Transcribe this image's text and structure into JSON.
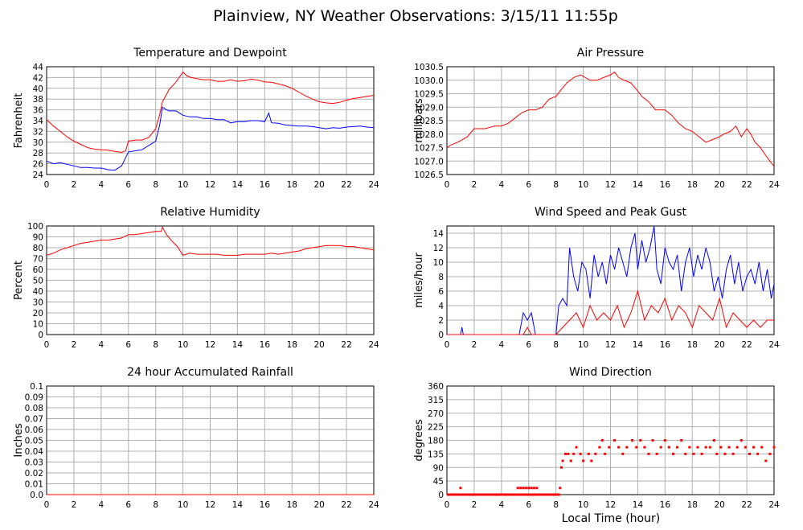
{
  "page": {
    "title": "Plainview, NY Weather Observations: 3/15/11 11:55p",
    "x_axis_label": "Local Time (hour)"
  },
  "colors": {
    "primary": "#ff0000",
    "secondary": "#0000ff",
    "grid": "#b0b0b0",
    "frame": "#000000"
  },
  "chart_data": [
    {
      "id": "temperature",
      "type": "line",
      "title": "Temperature and Dewpoint",
      "ylabel": "Fahrenheit",
      "xlim": [
        0,
        24
      ],
      "ylim": [
        24,
        44
      ],
      "xticks": [
        0,
        2,
        4,
        6,
        8,
        10,
        12,
        14,
        16,
        18,
        20,
        22,
        24
      ],
      "yticks": [
        24,
        26,
        28,
        30,
        32,
        34,
        36,
        38,
        40,
        42,
        44
      ],
      "grid": true,
      "series": [
        {
          "color": "#ff0000",
          "x": [
            0,
            0.5,
            1,
            1.5,
            2,
            2.5,
            3,
            3.5,
            4,
            4.5,
            5,
            5.5,
            5.8,
            6,
            6.5,
            7,
            7.5,
            8,
            8.3,
            8.5,
            9,
            9.5,
            10,
            10.3,
            10.6,
            11,
            11.5,
            12,
            12.5,
            13,
            13.5,
            14,
            14.5,
            15,
            15.5,
            16,
            16.5,
            17,
            17.5,
            18,
            18.5,
            19,
            19.5,
            20,
            20.5,
            21,
            21.5,
            22,
            22.5,
            23,
            23.5,
            24
          ],
          "y": [
            34.2,
            33,
            32,
            31,
            30.2,
            29.6,
            29,
            28.7,
            28.6,
            28.5,
            28.3,
            28.1,
            28.4,
            30.2,
            30.4,
            30.4,
            30.9,
            32.5,
            35.2,
            37.5,
            39.8,
            41.2,
            43,
            42.3,
            42,
            41.8,
            41.6,
            41.6,
            41.3,
            41.3,
            41.6,
            41.3,
            41.4,
            41.7,
            41.5,
            41.2,
            41.1,
            40.8,
            40.5,
            40,
            39.3,
            38.6,
            38,
            37.5,
            37.3,
            37.2,
            37.4,
            37.8,
            38.1,
            38.3,
            38.5,
            38.7
          ]
        },
        {
          "color": "#0000ff",
          "x": [
            0,
            0.5,
            1,
            1.5,
            2,
            2.5,
            3,
            3.5,
            4,
            4.5,
            5,
            5.5,
            6,
            6.5,
            7,
            7.5,
            8,
            8.3,
            8.5,
            8.8,
            9,
            9.5,
            10,
            10.5,
            11,
            11.5,
            12,
            12.5,
            13,
            13.5,
            14,
            14.5,
            15,
            15.5,
            16,
            16.3,
            16.5,
            17,
            17.5,
            18,
            18.5,
            19,
            19.5,
            20,
            20.5,
            21,
            21.5,
            22,
            22.5,
            23,
            23.5,
            24
          ],
          "y": [
            26.5,
            26,
            26.2,
            25.9,
            25.6,
            25.3,
            25.3,
            25.2,
            25.2,
            24.9,
            24.8,
            25.6,
            28.2,
            28.4,
            28.6,
            29.4,
            30.2,
            33.3,
            36.5,
            36,
            35.8,
            35.8,
            35,
            34.7,
            34.7,
            34.4,
            34.4,
            34.2,
            34.2,
            33.6,
            33.8,
            33.8,
            34,
            34,
            33.8,
            35.4,
            33.6,
            33.5,
            33.2,
            33.1,
            33,
            33,
            32.9,
            32.7,
            32.5,
            32.7,
            32.6,
            32.8,
            32.9,
            33,
            32.8,
            32.7
          ]
        }
      ]
    },
    {
      "id": "pressure",
      "type": "line",
      "title": "Air Pressure",
      "ylabel": "millibars",
      "xlim": [
        0,
        24
      ],
      "ylim": [
        1026.5,
        1030.5
      ],
      "xticks": [
        0,
        2,
        4,
        6,
        8,
        10,
        12,
        14,
        16,
        18,
        20,
        22,
        24
      ],
      "yticks": [
        1026.5,
        1027.0,
        1027.5,
        1028.0,
        1028.5,
        1029.0,
        1029.5,
        1030.0,
        1030.5
      ],
      "ytick_decimals": 1,
      "grid": true,
      "series": [
        {
          "color": "#ff0000",
          "x": [
            0,
            0.3,
            0.8,
            1.5,
            2,
            2.8,
            3.5,
            4,
            4.5,
            5,
            5.5,
            6,
            6.5,
            7,
            7.5,
            8,
            8.3,
            8.8,
            9.3,
            9.8,
            10.5,
            11,
            11.5,
            12,
            12.3,
            12.6,
            13,
            13.5,
            14,
            14.3,
            14.8,
            15.3,
            16,
            16.5,
            17,
            17.5,
            18,
            18.5,
            19,
            19.5,
            20,
            20.3,
            20.8,
            21.2,
            21.6,
            22,
            22.3,
            22.6,
            23,
            23.4,
            23.7,
            24
          ],
          "y": [
            1027.5,
            1027.6,
            1027.7,
            1027.9,
            1028.2,
            1028.2,
            1028.3,
            1028.3,
            1028.4,
            1028.6,
            1028.8,
            1028.9,
            1028.9,
            1029.0,
            1029.3,
            1029.4,
            1029.6,
            1029.9,
            1030.1,
            1030.2,
            1030.0,
            1030.0,
            1030.1,
            1030.2,
            1030.3,
            1030.1,
            1030.0,
            1029.9,
            1029.6,
            1029.4,
            1029.2,
            1028.9,
            1028.9,
            1028.7,
            1028.4,
            1028.2,
            1028.1,
            1027.9,
            1027.7,
            1027.8,
            1027.9,
            1028.0,
            1028.1,
            1028.3,
            1027.9,
            1028.2,
            1028.0,
            1027.7,
            1027.5,
            1027.2,
            1027.0,
            1026.8
          ]
        }
      ]
    },
    {
      "id": "humidity",
      "type": "line",
      "title": "Relative Humidity",
      "ylabel": "Percent",
      "xlim": [
        0,
        24
      ],
      "ylim": [
        0,
        100
      ],
      "xticks": [
        0,
        2,
        4,
        6,
        8,
        10,
        12,
        14,
        16,
        18,
        20,
        22,
        24
      ],
      "yticks": [
        0,
        10,
        20,
        30,
        40,
        50,
        60,
        70,
        80,
        90,
        100
      ],
      "grid": true,
      "series": [
        {
          "color": "#ff0000",
          "x": [
            0,
            0.5,
            1,
            1.5,
            2,
            2.5,
            3,
            3.5,
            4,
            4.5,
            5,
            5.5,
            6,
            6.5,
            7,
            7.5,
            8,
            8.4,
            8.5,
            8.8,
            9.2,
            9.6,
            10,
            10.5,
            11,
            11.5,
            12,
            12.5,
            13,
            13.5,
            14,
            14.5,
            15,
            15.5,
            16,
            16.5,
            17,
            17.5,
            18,
            18.5,
            19,
            19.5,
            20,
            20.5,
            21,
            21.5,
            22,
            22.5,
            23,
            23.5,
            24
          ],
          "y": [
            73,
            75,
            78,
            80,
            82,
            84,
            85,
            86,
            87,
            87,
            88,
            89,
            92,
            92,
            93,
            94,
            95,
            95,
            99,
            92,
            86,
            81,
            73,
            75,
            74,
            74,
            74,
            74,
            73,
            73,
            73,
            74,
            74,
            74,
            74,
            75,
            74,
            75,
            76,
            77,
            79,
            80,
            81,
            82,
            82,
            82,
            81,
            81,
            80,
            79,
            78
          ]
        }
      ]
    },
    {
      "id": "wind_speed",
      "type": "line",
      "title": "Wind Speed and Peak Gust",
      "ylabel": "miles/hour",
      "xlim": [
        0,
        24
      ],
      "ylim": [
        0,
        15
      ],
      "xticks": [
        0,
        2,
        4,
        6,
        8,
        10,
        12,
        14,
        16,
        18,
        20,
        22,
        24
      ],
      "yticks": [
        0,
        2,
        4,
        6,
        8,
        10,
        12,
        14
      ],
      "grid": true,
      "series": [
        {
          "color": "#0000ff",
          "x": [
            0,
            1,
            1.1,
            1.2,
            2,
            3,
            4,
            5,
            5.3,
            5.6,
            5.9,
            6.2,
            6.5,
            6.8,
            7,
            8,
            8.2,
            8.5,
            8.8,
            9,
            9.3,
            9.6,
            9.9,
            10.2,
            10.5,
            10.8,
            11.1,
            11.4,
            11.7,
            12,
            12.3,
            12.6,
            12.9,
            13.2,
            13.5,
            13.8,
            14,
            14.3,
            14.6,
            14.9,
            15.2,
            15.4,
            15.7,
            16,
            16.3,
            16.6,
            16.9,
            17.2,
            17.5,
            17.8,
            18.1,
            18.4,
            18.7,
            19,
            19.3,
            19.6,
            19.9,
            20.2,
            20.5,
            20.8,
            21.1,
            21.4,
            21.7,
            22,
            22.3,
            22.6,
            22.9,
            23.2,
            23.5,
            23.8,
            24
          ],
          "y": [
            0,
            0,
            1,
            0,
            0,
            0,
            0,
            0,
            0,
            3,
            2,
            3,
            0,
            0,
            0,
            0,
            4,
            5,
            4,
            12,
            8,
            6,
            10,
            9,
            5,
            11,
            8,
            10,
            7,
            11,
            9,
            12,
            10,
            8,
            12,
            14,
            9,
            13,
            10,
            12,
            15,
            9,
            7,
            12,
            10,
            9,
            11,
            6,
            10,
            12,
            8,
            11,
            9,
            12,
            10,
            6,
            8,
            5,
            9,
            11,
            7,
            10,
            6,
            8,
            9,
            7,
            10,
            6,
            9,
            5,
            7
          ]
        },
        {
          "color": "#ff0000",
          "x": [
            0,
            1,
            2,
            3,
            4,
            5,
            5.6,
            5.9,
            6.2,
            8,
            8.5,
            9,
            9.5,
            10,
            10.5,
            11,
            11.5,
            12,
            12.5,
            13,
            13.5,
            14,
            14.5,
            15,
            15.5,
            16,
            16.5,
            17,
            17.5,
            18,
            18.5,
            19,
            19.5,
            20,
            20.5,
            21,
            21.5,
            22,
            22.5,
            23,
            23.5,
            24
          ],
          "y": [
            0,
            0,
            0,
            0,
            0,
            0,
            0,
            1,
            0,
            0,
            1,
            2,
            3,
            1,
            4,
            2,
            3,
            2,
            4,
            1,
            3,
            6,
            2,
            4,
            3,
            5,
            2,
            4,
            3,
            1,
            4,
            3,
            2,
            5,
            1,
            3,
            2,
            1,
            2,
            1,
            2,
            2
          ]
        }
      ]
    },
    {
      "id": "rainfall",
      "type": "line",
      "title": "24 hour Accumulated Rainfall",
      "ylabel": "Inches",
      "xlim": [
        0,
        24
      ],
      "ylim": [
        0,
        0.1
      ],
      "xticks": [
        0,
        2,
        4,
        6,
        8,
        10,
        12,
        14,
        16,
        18,
        20,
        22,
        24
      ],
      "yticks": [
        0.0,
        0.01,
        0.02,
        0.03,
        0.04,
        0.05,
        0.06,
        0.07,
        0.08,
        0.09,
        0.1
      ],
      "ytick_labels": [
        "0.0",
        "0.01",
        "0.02",
        "0.03",
        "0.04",
        "0.05",
        "0.06",
        "0.07",
        "0.08",
        "0.09",
        "0.1"
      ],
      "grid": true,
      "series": [
        {
          "color": "#ff0000",
          "x": [
            0,
            24
          ],
          "y": [
            0,
            0
          ]
        }
      ]
    },
    {
      "id": "wind_direction",
      "type": "scatter",
      "title": "Wind Direction",
      "ylabel": "degrees",
      "xlim": [
        0,
        24
      ],
      "ylim": [
        0,
        360
      ],
      "xticks": [
        0,
        2,
        4,
        6,
        8,
        10,
        12,
        14,
        16,
        18,
        20,
        22,
        24
      ],
      "yticks": [
        0,
        45,
        90,
        135,
        180,
        225,
        270,
        315,
        360
      ],
      "grid": true,
      "series": [
        {
          "color": "#ff0000",
          "x": [
            1.0,
            5.2,
            5.4,
            5.6,
            5.8,
            6.0,
            6.2,
            6.4,
            6.6,
            8.3,
            8.4,
            8.5,
            8.7,
            8.9,
            9.1,
            9.3,
            9.5,
            9.8,
            10.0,
            10.4,
            10.6,
            10.9,
            11.2,
            11.4,
            11.6,
            11.9,
            12.3,
            12.6,
            12.9,
            13.2,
            13.6,
            13.9,
            14.2,
            14.5,
            14.8,
            15.1,
            15.4,
            15.7,
            16.0,
            16.3,
            16.6,
            16.9,
            17.2,
            17.5,
            17.8,
            18.1,
            18.4,
            18.7,
            19.0,
            19.3,
            19.6,
            19.8,
            20.1,
            20.4,
            20.7,
            21.0,
            21.3,
            21.6,
            21.9,
            22.2,
            22.5,
            22.8,
            23.1,
            23.4,
            23.7,
            24.0
          ],
          "y": [
            22,
            22,
            22,
            22,
            22,
            22,
            22,
            22,
            22,
            22,
            90,
            112,
            135,
            135,
            112,
            135,
            157,
            135,
            112,
            135,
            112,
            135,
            157,
            180,
            135,
            157,
            180,
            157,
            135,
            157,
            180,
            157,
            180,
            157,
            135,
            180,
            135,
            157,
            180,
            157,
            135,
            157,
            180,
            135,
            157,
            135,
            157,
            135,
            157,
            157,
            180,
            135,
            157,
            135,
            157,
            135,
            157,
            180,
            157,
            135,
            157,
            135,
            157,
            112,
            135,
            157
          ]
        }
      ]
    }
  ]
}
